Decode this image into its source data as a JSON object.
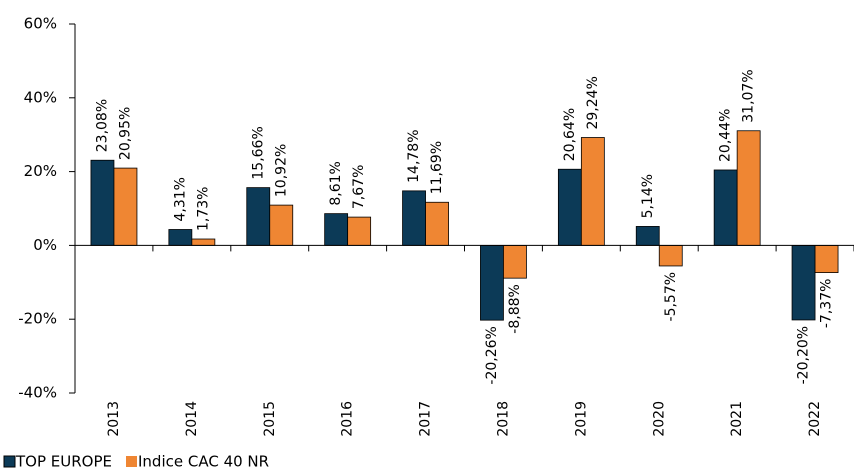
{
  "chart_data": {
    "type": "bar",
    "categories": [
      "2013",
      "2014",
      "2015",
      "2016",
      "2017",
      "2018",
      "2019",
      "2020",
      "2021",
      "2022"
    ],
    "series": [
      {
        "name": "TOP EUROPE",
        "color": "#0c3a57",
        "values": [
          23.08,
          4.31,
          15.66,
          8.61,
          14.78,
          -20.26,
          20.64,
          5.14,
          20.44,
          -20.2
        ],
        "value_labels": [
          "23,08%",
          "4,31%",
          "15,66%",
          "8,61%",
          "14,78%",
          "-20,26%",
          "20,64%",
          "5,14%",
          "20,44%",
          "-20,20%"
        ]
      },
      {
        "name": "Indice CAC 40 NR",
        "color": "#ef8633",
        "values": [
          20.95,
          1.73,
          10.92,
          7.67,
          11.69,
          -8.88,
          29.24,
          -5.57,
          31.07,
          -7.37
        ],
        "value_labels": [
          "20,95%",
          "1,73%",
          "10,92%",
          "7,67%",
          "11,69%",
          "-8,88%",
          "29,24%",
          "-5,57%",
          "31,07%",
          "-7,37%"
        ]
      }
    ],
    "ylim": [
      -40,
      60
    ],
    "yticks": [
      {
        "value": -40,
        "label": "-40%"
      },
      {
        "value": -20,
        "label": "-20%"
      },
      {
        "value": 0,
        "label": "0%"
      },
      {
        "value": 20,
        "label": "20%"
      },
      {
        "value": 40,
        "label": "40%"
      },
      {
        "value": 60,
        "label": "60%"
      }
    ],
    "grid": false,
    "legend": "bottom-left"
  }
}
